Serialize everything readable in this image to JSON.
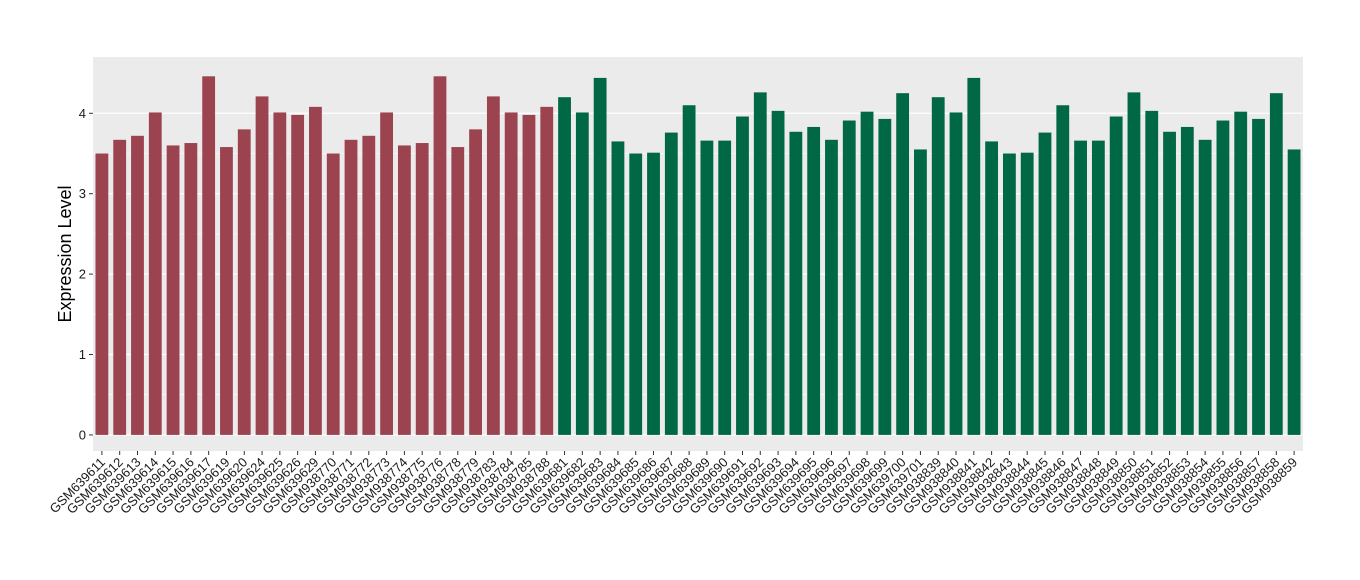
{
  "chart_data": {
    "type": "bar",
    "title": "",
    "xlabel": "",
    "ylabel": "Expression Level",
    "ylim": [
      -0.2,
      4.7
    ],
    "yticks": [
      0,
      1,
      2,
      3,
      4
    ],
    "ytick_labels": [
      "0",
      "1",
      "2",
      "3",
      "4"
    ],
    "grid": true,
    "legend": "none",
    "colors": {
      "group1": "#9b4450",
      "group2": "#006845",
      "panel": "#ebebeb",
      "gridline": "#ffffff"
    },
    "categories": [
      "GSM639611",
      "GSM639612",
      "GSM639613",
      "GSM639614",
      "GSM639615",
      "GSM639616",
      "GSM639617",
      "GSM639619",
      "GSM639620",
      "GSM639624",
      "GSM639625",
      "GSM639626",
      "GSM639629",
      "GSM938770",
      "GSM938771",
      "GSM938772",
      "GSM938773",
      "GSM938774",
      "GSM938775",
      "GSM938776",
      "GSM938778",
      "GSM938779",
      "GSM938783",
      "GSM938784",
      "GSM938785",
      "GSM938788",
      "GSM639681",
      "GSM639682",
      "GSM639683",
      "GSM639684",
      "GSM639685",
      "GSM639686",
      "GSM639687",
      "GSM639688",
      "GSM639689",
      "GSM639690",
      "GSM639691",
      "GSM639692",
      "GSM639693",
      "GSM639694",
      "GSM639695",
      "GSM639696",
      "GSM639697",
      "GSM639698",
      "GSM639699",
      "GSM639700",
      "GSM639701",
      "GSM938839",
      "GSM938840",
      "GSM938841",
      "GSM938842",
      "GSM938843",
      "GSM938844",
      "GSM938845",
      "GSM938846",
      "GSM938847",
      "GSM938848",
      "GSM938849",
      "GSM938850",
      "GSM938851",
      "GSM938852",
      "GSM938853",
      "GSM938854",
      "GSM938855",
      "GSM938856",
      "GSM938857",
      "GSM938858",
      "GSM938859"
    ],
    "values": [
      3.5,
      3.67,
      3.72,
      4.01,
      3.6,
      3.63,
      4.46,
      3.58,
      3.8,
      4.21,
      4.01,
      3.98,
      4.08,
      3.5,
      3.67,
      3.72,
      4.01,
      3.6,
      3.63,
      4.46,
      3.58,
      3.8,
      4.21,
      4.01,
      3.98,
      4.08,
      4.2,
      4.01,
      4.44,
      3.65,
      3.5,
      3.51,
      3.76,
      4.1,
      3.66,
      3.66,
      3.96,
      4.26,
      4.03,
      3.77,
      3.83,
      3.67,
      3.91,
      4.02,
      3.93,
      4.25,
      3.55,
      4.2,
      4.01,
      4.44,
      3.65,
      3.5,
      3.51,
      3.76,
      4.1,
      3.66,
      3.66,
      3.96,
      4.26,
      4.03,
      3.77,
      3.83,
      3.67,
      3.91,
      4.02,
      3.93,
      4.25,
      3.55
    ],
    "groups": [
      1,
      1,
      1,
      1,
      1,
      1,
      1,
      1,
      1,
      1,
      1,
      1,
      1,
      1,
      1,
      1,
      1,
      1,
      1,
      1,
      1,
      1,
      1,
      1,
      1,
      1,
      2,
      2,
      2,
      2,
      2,
      2,
      2,
      2,
      2,
      2,
      2,
      2,
      2,
      2,
      2,
      2,
      2,
      2,
      2,
      2,
      2,
      2,
      2,
      2,
      2,
      2,
      2,
      2,
      2,
      2,
      2,
      2,
      2,
      2,
      2,
      2,
      2,
      2,
      2,
      2,
      2,
      2
    ]
  }
}
